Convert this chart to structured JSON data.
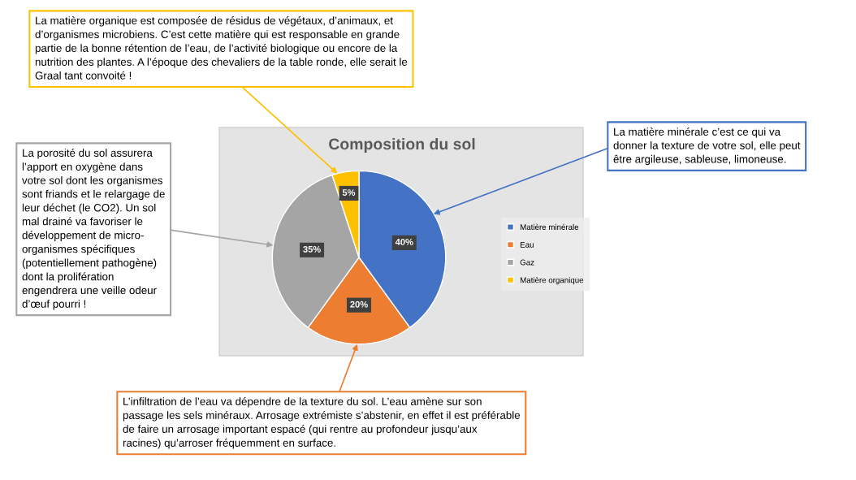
{
  "chart_data": {
    "type": "pie",
    "title": "Composition du sol",
    "categories": [
      "Matière minérale",
      "Eau",
      "Gaz",
      "Matière organique"
    ],
    "values": [
      40,
      20,
      35,
      5
    ],
    "colors": [
      "#4472c4",
      "#ed7d31",
      "#a5a5a5",
      "#ffc000"
    ],
    "value_labels": [
      "40%",
      "20%",
      "35%",
      "5%"
    ],
    "legend": "right",
    "annotations": [
      "La matière organique est composée de résidus de végétaux, d’animaux, et\nd’organismes microbiens. C’est cette matière qui est responsable en grande\npartie de la bonne rétention de l’eau, de l’activité biologique ou encore de la\nnutrition des plantes. A l’époque des chevaliers de la table ronde, elle serait le\nGraal tant convoité !",
      "La porosité du sol assurera\nl’apport en oxygène dans\nvotre sol dont les organismes\nsont friands et le relargage de\nleur déchet (le CO2). Un sol\nmal drainé va favoriser le\ndéveloppement de micro-\norganismes spécifiques\n(potentiellement pathogène)\ndont la prolifération\nengendrera une veille odeur\nd’œuf pourri !",
      "La matière minérale c’est ce qui va\ndonner la texture de votre sol, elle peut\nêtre argileuse, sableuse, limoneuse.",
      "L’infiltration de l’eau va dépendre de la texture du sol. L’eau amène sur son\npassage les sels minéraux. Arrosage extrémiste s’abstenir, en effet il est préférable\nde faire un arrosage important espacé (qui rentre au profondeur jusqu’aux\nracines) qu’arroser fréquemment en surface."
    ]
  }
}
